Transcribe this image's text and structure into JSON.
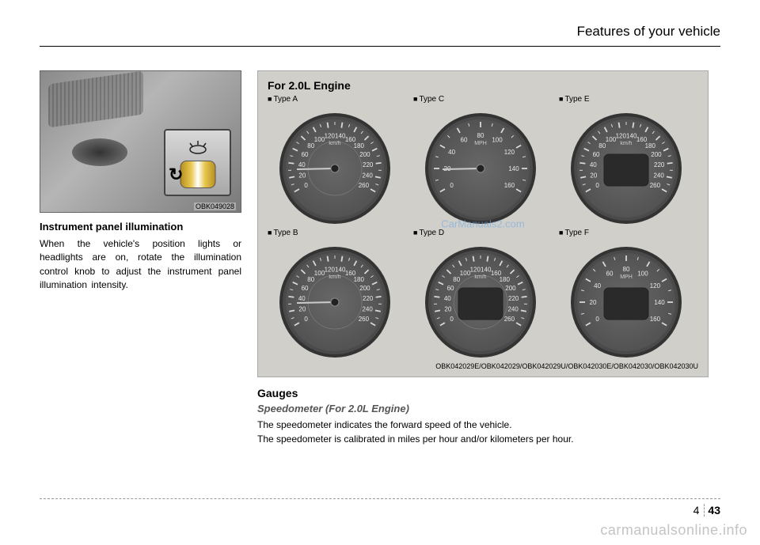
{
  "header": {
    "title": "Features of your vehicle"
  },
  "left": {
    "photo_code": "OBK049028",
    "heading": "Instrument panel illumination",
    "body": "When the vehicle's position lights or headlights are on, rotate the illumination control knob to adjust the instrument panel illumination intensity."
  },
  "panel": {
    "title": "For 2.0L Engine",
    "watermark": "CarManuals2.com",
    "codes": "OBK042029E/OBK042029/OBK042029U/OBK042030E/OBK042030/OBK042030U",
    "gauges": [
      {
        "label": "Type A",
        "unit": "km/h",
        "max": 260,
        "has_inner_mph": true,
        "digital": false
      },
      {
        "label": "Type C",
        "unit": "MPH",
        "max": 160,
        "has_inner_mph": false,
        "digital": false
      },
      {
        "label": "Type E",
        "unit": "km/h",
        "max": 260,
        "has_inner_mph": false,
        "digital": true
      },
      {
        "label": "Type B",
        "unit": "km/h",
        "max": 260,
        "has_inner_mph": true,
        "digital": false
      },
      {
        "label": "Type D",
        "unit": "km/h",
        "max": 260,
        "has_inner_mph": true,
        "digital": true
      },
      {
        "label": "Type F",
        "unit": "MPH",
        "max": 160,
        "has_inner_mph": false,
        "digital": true
      }
    ],
    "colors": {
      "face": "#5d5d5d",
      "face_edge": "#4a4a4a",
      "bezel": "#333333",
      "tick": "#d8d8d8",
      "num": "#e8e8e8",
      "needle": "#cccccc",
      "digital_bg": "#2a2a2a"
    }
  },
  "right_text": {
    "heading": "Gauges",
    "subheading": "Speedometer (For 2.0L Engine)",
    "line1": "The speedometer indicates the forward speed of the vehicle.",
    "line2": "The speedometer is calibrated in miles per hour and/or kilometers per hour."
  },
  "footer": {
    "section": "4",
    "page": "43",
    "site": "carmanualsonline.info"
  }
}
